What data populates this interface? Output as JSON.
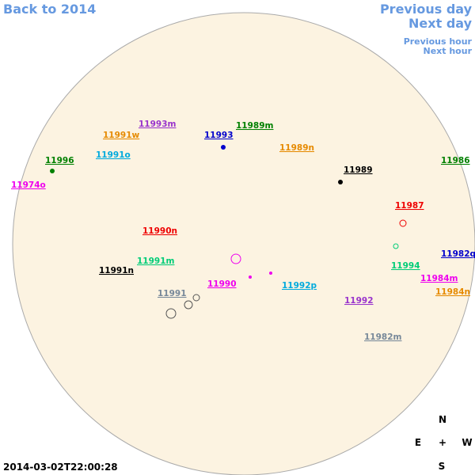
{
  "nav": {
    "back": "Back to 2014",
    "previous_day": "Previous day",
    "next_day": "Next day",
    "previous_hour": "Previous hour",
    "next_hour": "Next hour"
  },
  "regions": [
    {
      "label": "11993m",
      "color": "#9933cc"
    },
    {
      "label": "11991w",
      "color": "#e68a00"
    },
    {
      "label": "11993",
      "color": "#0000cc"
    },
    {
      "label": "11989m",
      "color": "#008000"
    },
    {
      "label": "11989n",
      "color": "#e68a00"
    },
    {
      "label": "11991o",
      "color": "#00aadd"
    },
    {
      "label": "11996",
      "color": "#008000"
    },
    {
      "label": "11986",
      "color": "#008000"
    },
    {
      "label": "11974o",
      "color": "#ee00ee"
    },
    {
      "label": "11989",
      "color": "#000000"
    },
    {
      "label": "11987",
      "color": "#ee0000"
    },
    {
      "label": "11990n",
      "color": "#ee0000"
    },
    {
      "label": "11982q",
      "color": "#0000cc"
    },
    {
      "label": "11991m",
      "color": "#00cc77"
    },
    {
      "label": "11994",
      "color": "#00cc77"
    },
    {
      "label": "11991n",
      "color": "#000000"
    },
    {
      "label": "11984m",
      "color": "#ee00ee"
    },
    {
      "label": "11990",
      "color": "#ee00ee"
    },
    {
      "label": "11992p",
      "color": "#00aadd"
    },
    {
      "label": "11984n",
      "color": "#e68a00"
    },
    {
      "label": "11991",
      "color": "#778899"
    },
    {
      "label": "11992",
      "color": "#9933cc"
    },
    {
      "label": "11982m",
      "color": "#778899"
    }
  ],
  "compass": {
    "north": "N",
    "east": "E",
    "center": "+",
    "west": "W",
    "south": "S"
  },
  "timestamp": "2014-03-02T22:00:28"
}
